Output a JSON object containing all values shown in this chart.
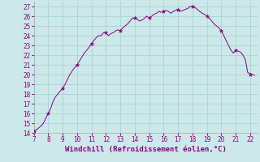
{
  "x": [
    7,
    7.17,
    7.33,
    7.5,
    7.67,
    7.83,
    8,
    8.17,
    8.33,
    8.5,
    8.67,
    8.83,
    9,
    9.17,
    9.33,
    9.5,
    9.67,
    9.83,
    10,
    10.17,
    10.33,
    10.5,
    10.67,
    10.83,
    11,
    11.17,
    11.33,
    11.5,
    11.67,
    11.83,
    12,
    12.17,
    12.33,
    12.5,
    12.67,
    12.83,
    13,
    13.17,
    13.33,
    13.5,
    13.67,
    13.83,
    14,
    14.17,
    14.33,
    14.5,
    14.67,
    14.83,
    15,
    15.17,
    15.33,
    15.5,
    15.67,
    15.83,
    16,
    16.17,
    16.33,
    16.5,
    16.67,
    16.83,
    17,
    17.17,
    17.33,
    17.5,
    17.67,
    17.83,
    18,
    18.17,
    18.33,
    18.5,
    18.67,
    18.83,
    19,
    19.17,
    19.33,
    19.5,
    19.67,
    19.83,
    20,
    20.17,
    20.33,
    20.5,
    20.67,
    20.83,
    21,
    21.17,
    21.33,
    21.5,
    21.67,
    21.83,
    22,
    22.17,
    22.3
  ],
  "y": [
    14.2,
    14.3,
    14.5,
    14.7,
    15.0,
    15.5,
    16.0,
    16.5,
    17.2,
    17.7,
    18.0,
    18.3,
    18.6,
    19.0,
    19.5,
    20.0,
    20.4,
    20.7,
    21.0,
    21.4,
    21.8,
    22.2,
    22.5,
    22.8,
    23.2,
    23.5,
    23.8,
    24.0,
    24.0,
    24.3,
    24.3,
    24.0,
    24.2,
    24.3,
    24.5,
    24.6,
    24.5,
    24.8,
    25.0,
    25.2,
    25.5,
    25.8,
    25.8,
    25.7,
    25.5,
    25.6,
    25.8,
    26.0,
    25.8,
    26.0,
    26.2,
    26.3,
    26.5,
    26.4,
    26.5,
    26.6,
    26.5,
    26.3,
    26.5,
    26.6,
    26.7,
    26.5,
    26.6,
    26.7,
    26.8,
    27.0,
    27.0,
    26.9,
    26.7,
    26.5,
    26.3,
    26.2,
    26.0,
    25.8,
    25.5,
    25.2,
    25.0,
    24.8,
    24.5,
    24.0,
    23.5,
    23.0,
    22.5,
    22.2,
    22.5,
    22.4,
    22.3,
    22.0,
    21.5,
    20.2,
    20.1,
    20.0,
    19.9
  ],
  "marker_x": [
    7,
    8,
    9,
    10,
    11,
    12,
    13,
    14,
    15,
    16,
    17,
    18,
    19,
    20,
    21,
    22
  ],
  "marker_y": [
    14.2,
    16.0,
    18.6,
    21.0,
    23.2,
    24.3,
    24.5,
    25.8,
    25.8,
    26.5,
    26.7,
    27.0,
    26.0,
    24.5,
    22.5,
    20.0
  ],
  "line_color": "#880088",
  "marker_color": "#880088",
  "bg_color": "#cce8e8",
  "grid_color": "#aad4d4",
  "xlabel": "Windchill (Refroidissement éolien,°C)",
  "xlabel_color": "#880088",
  "tick_color": "#880088",
  "xlim": [
    7,
    22.5
  ],
  "ylim": [
    14,
    27.5
  ],
  "yticks": [
    14,
    15,
    16,
    17,
    18,
    19,
    20,
    21,
    22,
    23,
    24,
    25,
    26,
    27
  ],
  "xticks": [
    7,
    8,
    9,
    10,
    11,
    12,
    13,
    14,
    15,
    16,
    17,
    18,
    19,
    20,
    21,
    22
  ],
  "tick_fontsize": 5.5,
  "xlabel_fontsize": 6.5
}
